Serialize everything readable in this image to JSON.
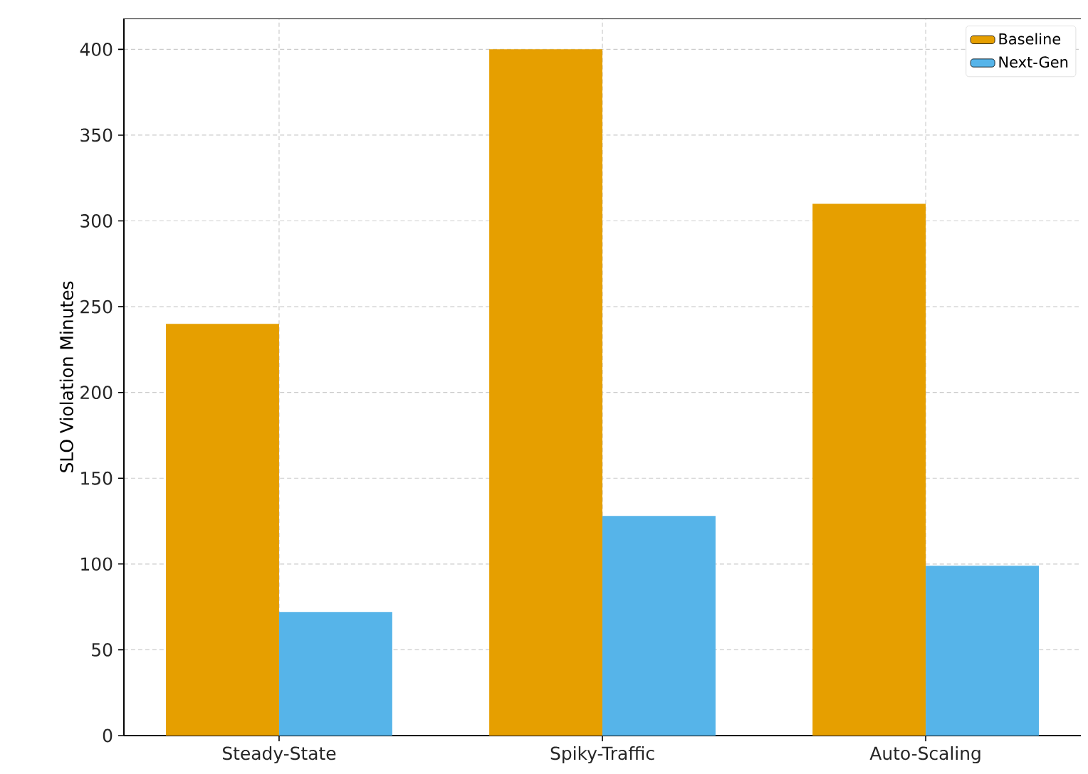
{
  "chart_data": {
    "type": "bar",
    "ylabel": "SLO Violation Minutes",
    "categories": [
      "Steady-State",
      "Spiky-Traffic",
      "Auto-Scaling"
    ],
    "series": [
      {
        "name": "Baseline",
        "color": "#e69f00",
        "values": [
          240,
          400,
          310
        ]
      },
      {
        "name": "Next-Gen",
        "color": "#56b4e9",
        "values": [
          72,
          128,
          99
        ]
      }
    ],
    "ylim": [
      0,
      418
    ],
    "yticks": [
      0,
      50,
      100,
      150,
      200,
      250,
      300,
      350,
      400
    ],
    "grid": true,
    "legend": "top right"
  }
}
